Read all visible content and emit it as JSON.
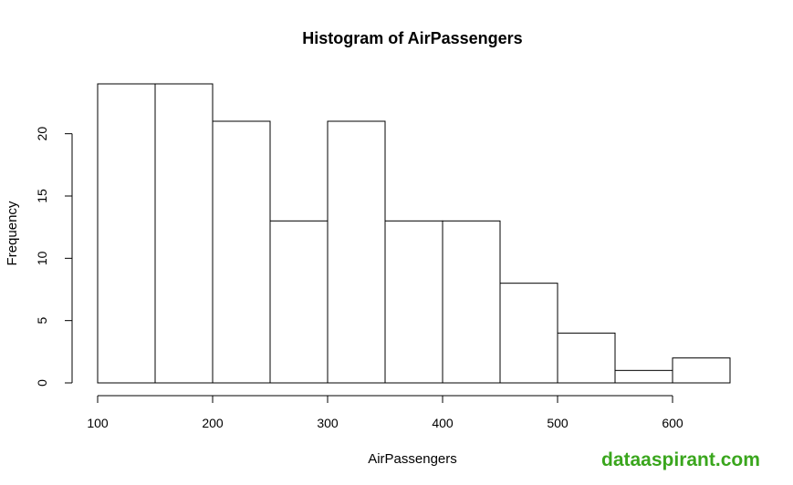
{
  "chart_data": {
    "type": "bar",
    "title": "Histogram of AirPassengers",
    "xlabel": "AirPassengers",
    "ylabel": "Frequency",
    "bins": [
      {
        "start": 100,
        "end": 150,
        "count": 24
      },
      {
        "start": 150,
        "end": 200,
        "count": 24
      },
      {
        "start": 200,
        "end": 250,
        "count": 21
      },
      {
        "start": 250,
        "end": 300,
        "count": 13
      },
      {
        "start": 300,
        "end": 350,
        "count": 21
      },
      {
        "start": 350,
        "end": 400,
        "count": 13
      },
      {
        "start": 400,
        "end": 450,
        "count": 13
      },
      {
        "start": 450,
        "end": 500,
        "count": 8
      },
      {
        "start": 500,
        "end": 550,
        "count": 4
      },
      {
        "start": 550,
        "end": 600,
        "count": 1
      },
      {
        "start": 600,
        "end": 650,
        "count": 2
      }
    ],
    "xlim": [
      100,
      650
    ],
    "ylim": [
      0,
      24
    ],
    "xticks": [
      100,
      200,
      300,
      400,
      500,
      600
    ],
    "yticks": [
      0,
      5,
      10,
      15,
      20
    ],
    "grid": false,
    "bar_fill": "#ffffff",
    "bar_stroke": "#000000"
  },
  "watermark": "dataaspirant.com",
  "watermark_color": "#3aa61d"
}
